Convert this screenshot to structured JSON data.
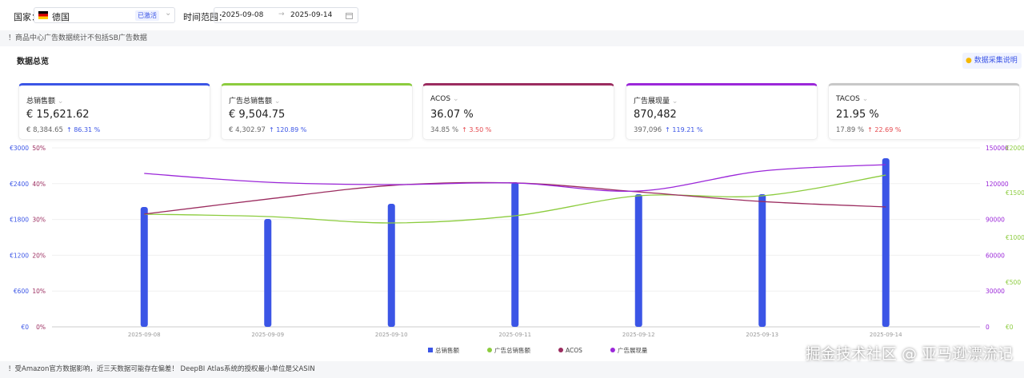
{
  "filters": {
    "country_label": "国家：",
    "country": "德国",
    "country_status": "已激活",
    "date_label": "时间范围：",
    "date_start": "2025-09-08",
    "date_end": "2025-09-14"
  },
  "notice": "！商品中心广告数据统计不包括SB广告数据",
  "section_title": "数据总览",
  "help_button": "数据采集说明",
  "cards": [
    {
      "name": "总销售额",
      "value": "€ 15,621.62",
      "previous": "€ 8,384.65",
      "change": "86.31 %",
      "color": "#3b55e6",
      "change_color": "#3b55e6"
    },
    {
      "name": "广告总销售额",
      "value": "€ 9,504.75",
      "previous": "€ 4,302.97",
      "change": "120.89 %",
      "color": "#8ccc3e",
      "change_color": "#3b55e6"
    },
    {
      "name": "ACOS",
      "value": "36.07 %",
      "previous": "34.85 %",
      "change": "3.50 %",
      "color": "#9b2c5f",
      "change_color": "#e5484d"
    },
    {
      "name": "广告展现量",
      "value": "870,482",
      "previous": "397,096",
      "change": "119.21 %",
      "color": "#9b27d9",
      "change_color": "#3b55e6"
    },
    {
      "name": "TACOS",
      "value": "21.95 %",
      "previous": "17.89 %",
      "change": "22.69 %",
      "color": "#c8c8c8",
      "change_color": "#e5484d"
    }
  ],
  "chart_data": {
    "type": "combo",
    "categories": [
      "2025-09-08",
      "2025-09-09",
      "2025-09-10",
      "2025-09-11",
      "2025-09-12",
      "2025-09-13",
      "2025-09-14"
    ],
    "series": [
      {
        "name": "总销售额",
        "type": "bar",
        "axis": "y",
        "color": "#3b55e6",
        "values": [
          2009,
          1808,
          2062,
          2424,
          2223,
          2223,
          2826
        ]
      },
      {
        "name": "广告总销售额",
        "type": "line",
        "axis": "y4",
        "color": "#8ccc3e",
        "values": [
          1259,
          1232,
          1161,
          1241,
          1464,
          1464,
          1696
        ]
      },
      {
        "name": "ACOS",
        "type": "line",
        "axis": "y3",
        "color": "#9b2c5f",
        "values": [
          31.5,
          35.7,
          39.5,
          40.2,
          37.7,
          35.0,
          33.5
        ]
      },
      {
        "name": "广告展现量",
        "type": "line",
        "axis": "y2",
        "color": "#9b27d9",
        "values": [
          128571,
          121205,
          119196,
          120536,
          113839,
          130580,
          135938
        ]
      }
    ],
    "ylim": [
      0,
      3000
    ],
    "yticks": [
      {
        "value": 0,
        "label": "€0"
      },
      {
        "value": 600,
        "label": "€600"
      },
      {
        "value": 1200,
        "label": "€1200"
      },
      {
        "value": 1800,
        "label": "€1800"
      },
      {
        "value": 2400,
        "label": "€2400"
      },
      {
        "value": 3000,
        "label": "€3000"
      }
    ],
    "y3lim": [
      0,
      50
    ],
    "y3ticks": [
      {
        "value": 0,
        "label": "0%"
      },
      {
        "value": 10,
        "label": "10%"
      },
      {
        "value": 20,
        "label": "20%"
      },
      {
        "value": 30,
        "label": "30%"
      },
      {
        "value": 40,
        "label": "40%"
      },
      {
        "value": 50,
        "label": "50%"
      }
    ],
    "y2lim": [
      0,
      150000
    ],
    "y2ticks": [
      0,
      30000,
      60000,
      90000,
      120000,
      150000
    ],
    "y4lim": [
      0,
      2000
    ],
    "y4ticks": [
      {
        "value": 0,
        "label": "€0"
      },
      {
        "value": 500,
        "label": "€500"
      },
      {
        "value": 1000,
        "label": "€1000"
      },
      {
        "value": 1500,
        "label": "€1500"
      },
      {
        "value": 2000,
        "label": "€2000"
      }
    ],
    "grid": true,
    "legend": "bottom"
  },
  "footer_notice": "！受Amazon官方数据影响，近三天数据可能存在偏差！ DeepBI Atlas系统的授权最小单位是父ASIN",
  "watermark": "掘金技术社区 @ 亚马逊漂流记"
}
